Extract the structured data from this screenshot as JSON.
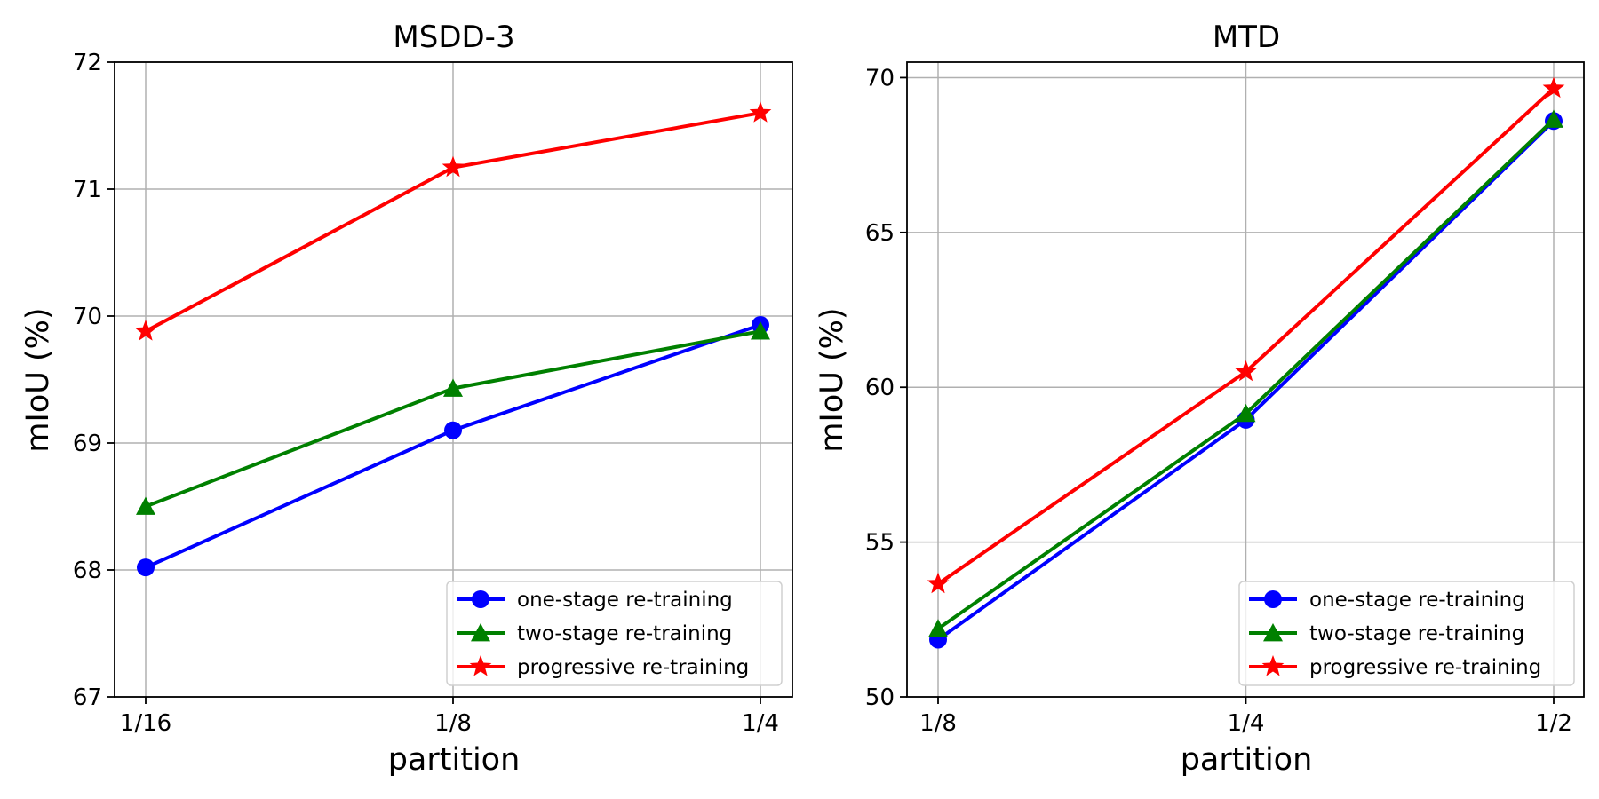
{
  "chart_data": [
    {
      "type": "line",
      "title": "MSDD-3",
      "xlabel": "partition",
      "ylabel": "mIoU (%)",
      "categories": [
        "1/16",
        "1/8",
        "1/4"
      ],
      "ylim": [
        67,
        72
      ],
      "yticks": [
        "67",
        "68",
        "69",
        "70",
        "71",
        "72"
      ],
      "grid": true,
      "legend_position": "lower right",
      "series": [
        {
          "name": "one-stage re-training",
          "color": "#0000ff",
          "marker": "circle",
          "values": [
            68.02,
            69.1,
            69.93
          ]
        },
        {
          "name": "two-stage re-training",
          "color": "#008000",
          "marker": "triangle",
          "values": [
            68.5,
            69.43,
            69.88
          ]
        },
        {
          "name": "progressive re-training",
          "color": "#ff0000",
          "marker": "star",
          "values": [
            69.88,
            71.17,
            71.6
          ]
        }
      ]
    },
    {
      "type": "line",
      "title": "MTD",
      "xlabel": "partition",
      "ylabel": "mIoU (%)",
      "categories": [
        "1/8",
        "1/4",
        "1/2"
      ],
      "ylim": [
        50,
        70.5
      ],
      "yticks": [
        "50",
        "55",
        "60",
        "65",
        "70"
      ],
      "grid": true,
      "legend_position": "lower right",
      "series": [
        {
          "name": "one-stage re-training",
          "color": "#0000ff",
          "marker": "circle",
          "values": [
            51.85,
            58.95,
            68.6
          ]
        },
        {
          "name": "two-stage re-training",
          "color": "#008000",
          "marker": "triangle",
          "values": [
            52.2,
            59.15,
            68.65
          ]
        },
        {
          "name": "progressive re-training",
          "color": "#ff0000",
          "marker": "star",
          "values": [
            53.65,
            60.5,
            69.65
          ]
        }
      ]
    }
  ]
}
